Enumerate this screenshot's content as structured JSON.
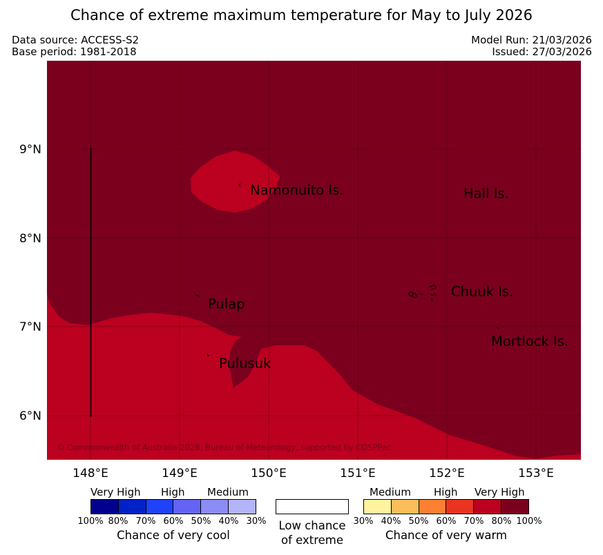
{
  "title": "Chance of extreme maximum temperature for May to July 2026",
  "meta": {
    "data_source": "Data source: ACCESS-S2",
    "base_period": "Base period: 1981-2018",
    "model_run": "Model Run: 21/03/2026",
    "issued": "Issued: 27/03/2026"
  },
  "map": {
    "copyright": "© Commonwealth of Australia 2026, Bureau of Meteorology, supported by COSPPac",
    "lon_ticks": [
      "148°E",
      "149°E",
      "150°E",
      "151°E",
      "152°E",
      "153°E"
    ],
    "lat_ticks": [
      "9°N",
      "8°N",
      "7°N",
      "6°N"
    ],
    "places": {
      "namonuito": "Namonuito Is.",
      "hall": "Hall Is.",
      "pulap": "Pulap",
      "chuuk": "Chuuk Is.",
      "mortlock": "Mortlock Is.",
      "pulusuk": "Pulusuk"
    },
    "colors": {
      "very_high_warm": "#7a001e",
      "high_warm": "#bb0020"
    }
  },
  "legend": {
    "cool": {
      "headers": [
        "Very High",
        "High",
        "Medium"
      ],
      "ticks": [
        "100%",
        "80%",
        "70%",
        "60%",
        "50%",
        "40%",
        "30%"
      ],
      "colors": [
        "#00008c",
        "#0022c6",
        "#2042f8",
        "#6464f4",
        "#8c8cf6",
        "#b4b4fa"
      ],
      "title": "Chance of very cool"
    },
    "neutral": {
      "line1": "Low chance",
      "line2": "of extreme",
      "color": "#ffffff"
    },
    "warm": {
      "headers": [
        "Medium",
        "High",
        "Very High"
      ],
      "ticks": [
        "30%",
        "40%",
        "50%",
        "60%",
        "70%",
        "80%",
        "100%"
      ],
      "colors": [
        "#fff3a0",
        "#fbbe5a",
        "#fd7f32",
        "#ea3422",
        "#bb0020",
        "#7a001e"
      ],
      "title": "Chance of very warm"
    }
  }
}
